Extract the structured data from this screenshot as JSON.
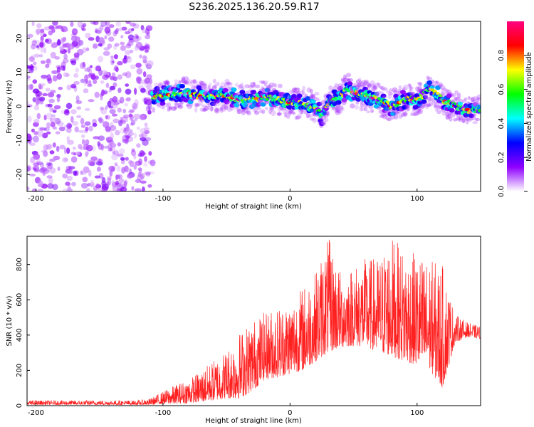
{
  "figure": {
    "title": "S236.2025.136.20.59.R17"
  },
  "chart_data": [
    {
      "type": "heatmap",
      "title": "S236.2025.136.20.59.R17",
      "xlabel": "Height of straight line (km)",
      "ylabel": "Frequency (Hz)",
      "xlim": [
        -207,
        150
      ],
      "ylim": [
        -25,
        25
      ],
      "x_ticks": [
        -200,
        -100,
        0,
        100
      ],
      "y_ticks": [
        -20,
        -10,
        0,
        10,
        20
      ],
      "grid": false,
      "noise_region_x": [
        -207,
        -108
      ],
      "ridge_frequency": {
        "x": [
          -108,
          -100,
          -90,
          -80,
          -70,
          -60,
          -50,
          -40,
          -30,
          -20,
          -10,
          0,
          10,
          20,
          25,
          30,
          40,
          45,
          50,
          60,
          70,
          80,
          90,
          100,
          110,
          120,
          130,
          140,
          150
        ],
        "freq": [
          3,
          3,
          4,
          4,
          3,
          3,
          3,
          2,
          2,
          3,
          2,
          1,
          1,
          0,
          -3,
          1,
          3,
          5,
          4,
          3,
          2,
          0,
          2,
          2,
          5,
          2,
          0,
          -1,
          -1
        ]
      },
      "colorbar": {
        "label": "Normalized spectral amplitude",
        "range": [
          0.0,
          1.0
        ],
        "ticks": [
          0.0,
          0.2,
          0.4,
          0.6,
          0.8
        ],
        "tick_labels": [
          "0.0",
          "0.2",
          "0.4",
          "0.6",
          "0.8"
        ],
        "colors": [
          "#ffffff",
          "#8f00ff",
          "#0000ff",
          "#00ffff",
          "#00ff00",
          "#ffff00",
          "#ff0000",
          "#ff0080"
        ]
      }
    },
    {
      "type": "line",
      "title": "",
      "xlabel": "Height of straight line (km)",
      "ylabel": "SNR (10 * v/v)",
      "xlim": [
        -207,
        150
      ],
      "ylim": [
        0,
        960
      ],
      "x_ticks": [
        -200,
        -100,
        0,
        100
      ],
      "y_ticks": [
        0,
        200,
        400,
        600,
        800
      ],
      "grid": false,
      "series": [
        {
          "color": "#ff2020",
          "envelope": {
            "x": [
              -207,
              -120,
              -110,
              -100,
              -90,
              -80,
              -70,
              -60,
              -50,
              -40,
              -30,
              -20,
              -10,
              0,
              10,
              20,
              30,
              40,
              50,
              60,
              70,
              80,
              90,
              100,
              110,
              120,
              130,
              140,
              150
            ],
            "low": [
              5,
              5,
              5,
              10,
              10,
              15,
              20,
              30,
              40,
              40,
              80,
              150,
              160,
              180,
              200,
              250,
              300,
              330,
              340,
              330,
              300,
              280,
              250,
              230,
              200,
              100,
              360,
              390,
              380
            ],
            "high": [
              30,
              30,
              40,
              80,
              120,
              150,
              200,
              260,
              320,
              420,
              490,
              530,
              570,
              600,
              680,
              760,
              960,
              760,
              800,
              840,
              840,
              960,
              880,
              860,
              830,
              800,
              520,
              470,
              450
            ]
          }
        }
      ]
    }
  ]
}
